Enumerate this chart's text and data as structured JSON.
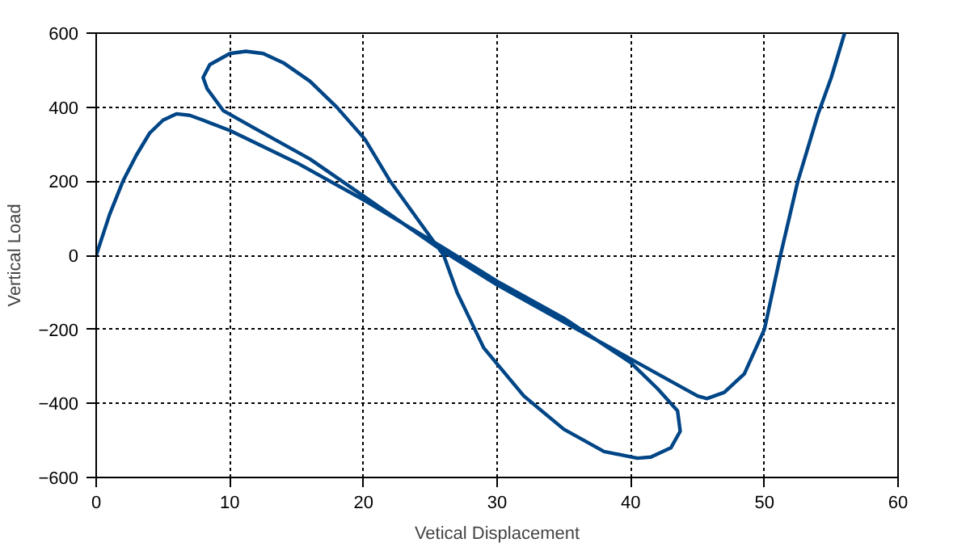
{
  "chart_data": {
    "type": "line",
    "xlabel": "Vetical Displacement",
    "ylabel": "Vertical Load",
    "xlim": [
      0,
      60
    ],
    "ylim": [
      -600,
      600
    ],
    "xticks": [
      0,
      10,
      20,
      30,
      40,
      50,
      60
    ],
    "yticks": [
      -600,
      -400,
      -200,
      0,
      200,
      400,
      600
    ],
    "grid": true,
    "line_style": "solid",
    "marker": "none",
    "series": [
      {
        "color": "#004586",
        "x": [
          0,
          1,
          2,
          3,
          4,
          5,
          6,
          7,
          8,
          10,
          15,
          20,
          26,
          30,
          35,
          40,
          42,
          43.5,
          43.7,
          43,
          41.5,
          40.5,
          38,
          35,
          32,
          29,
          27,
          26,
          24,
          22,
          20.1,
          18,
          16,
          14,
          12.5,
          11.2,
          10,
          8.5,
          8,
          8.3,
          9.5,
          12,
          16,
          20,
          26,
          30,
          35,
          40,
          43,
          45,
          45.7,
          47,
          48.5,
          50,
          51.2,
          52.5,
          54,
          55,
          56
        ],
        "values": [
          0,
          110,
          200,
          270,
          330,
          365,
          382,
          378,
          365,
          337,
          250,
          150,
          20,
          -70,
          -170,
          -290,
          -360,
          -420,
          -475,
          -520,
          -545,
          -548,
          -530,
          -470,
          -380,
          -250,
          -100,
          0,
          100,
          200,
          314,
          400,
          470,
          520,
          545,
          551,
          545,
          515,
          480,
          450,
          391,
          340,
          260,
          160,
          10,
          -80,
          -180,
          -280,
          -340,
          -380,
          -387,
          -370,
          -320,
          -200,
          0,
          200,
          380,
          480,
          600
        ]
      }
    ]
  }
}
